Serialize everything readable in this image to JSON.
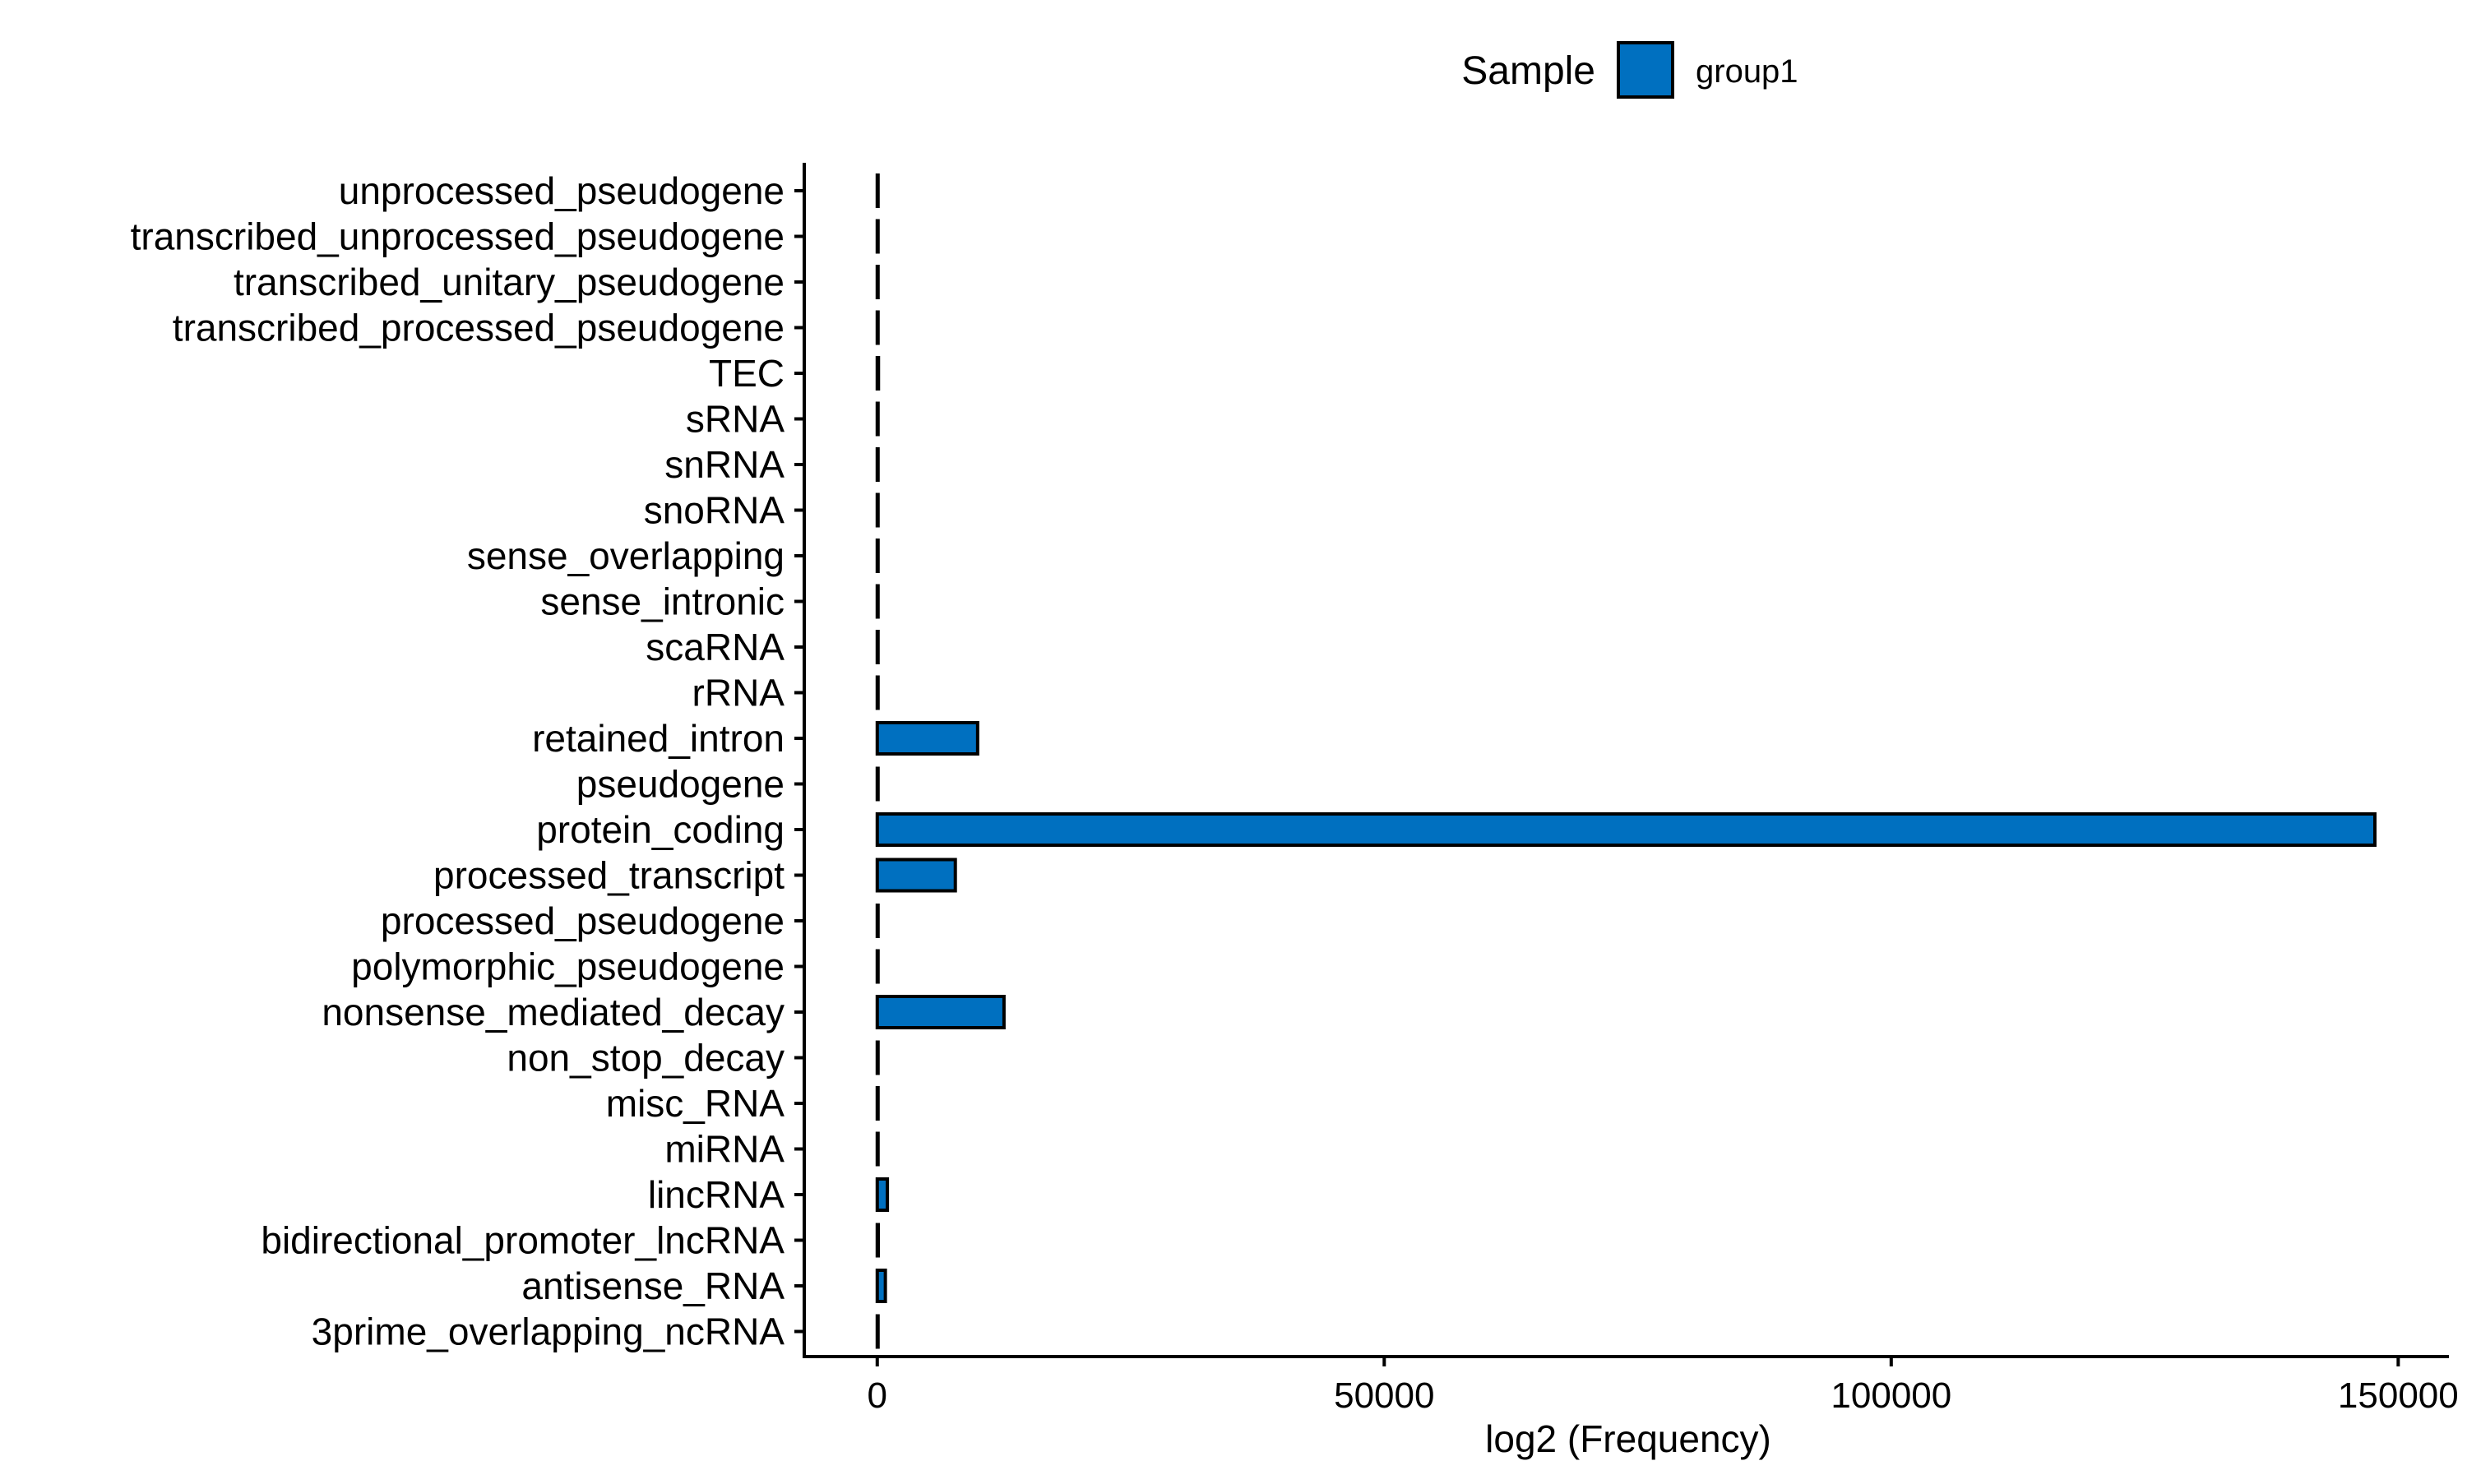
{
  "chart_data": {
    "type": "bar",
    "orientation": "horizontal",
    "categories": [
      "unprocessed_pseudogene",
      "transcribed_unprocessed_pseudogene",
      "transcribed_unitary_pseudogene",
      "transcribed_processed_pseudogene",
      "TEC",
      "sRNA",
      "snRNA",
      "snoRNA",
      "sense_overlapping",
      "sense_intronic",
      "scaRNA",
      "rRNA",
      "retained_intron",
      "pseudogene",
      "protein_coding",
      "processed_transcript",
      "processed_pseudogene",
      "polymorphic_pseudogene",
      "nonsense_mediated_decay",
      "non_stop_decay",
      "misc_RNA",
      "miRNA",
      "lincRNA",
      "bidirectional_promoter_lncRNA",
      "antisense_RNA",
      "3prime_overlapping_ncRNA"
    ],
    "series": [
      {
        "name": "group1",
        "color": "#0070c0",
        "values": [
          10,
          20,
          20,
          30,
          120,
          5,
          30,
          40,
          40,
          60,
          10,
          10,
          9900,
          5,
          147700,
          7700,
          60,
          5,
          12500,
          10,
          10,
          20,
          1000,
          100,
          800,
          5
        ]
      }
    ],
    "xlabel": "log2 (Frequency)",
    "ylabel": "",
    "xlim": [
      -7200,
      155000
    ],
    "xticks": [
      0,
      50000,
      100000,
      150000
    ],
    "xtick_labels": [
      "0",
      "50000",
      "100000",
      "150000"
    ],
    "grid": false,
    "legend": {
      "title": "Sample",
      "position": "top"
    }
  }
}
